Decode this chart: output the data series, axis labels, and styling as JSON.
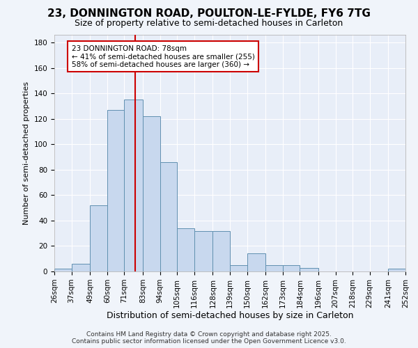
{
  "title_line1": "23, DONNINGTON ROAD, POULTON-LE-FYLDE, FY6 7TG",
  "title_line2": "Size of property relative to semi-detached houses in Carleton",
  "xlabel": "Distribution of semi-detached houses by size in Carleton",
  "ylabel": "Number of semi-detached properties",
  "bin_labels": [
    "26sqm",
    "37sqm",
    "49sqm",
    "60sqm",
    "71sqm",
    "83sqm",
    "94sqm",
    "105sqm",
    "116sqm",
    "128sqm",
    "139sqm",
    "150sqm",
    "162sqm",
    "173sqm",
    "184sqm",
    "196sqm",
    "207sqm",
    "218sqm",
    "229sqm",
    "241sqm",
    "252sqm"
  ],
  "bin_edges": [
    26,
    37,
    49,
    60,
    71,
    83,
    94,
    105,
    116,
    128,
    139,
    150,
    162,
    173,
    184,
    196,
    207,
    218,
    229,
    241,
    252
  ],
  "bar_heights": [
    2,
    6,
    52,
    127,
    135,
    122,
    86,
    34,
    32,
    32,
    5,
    14,
    5,
    5,
    3,
    0,
    0,
    0,
    0,
    2
  ],
  "bar_color": "#c8d8ee",
  "bar_edge_color": "#6090b0",
  "property_size": 78,
  "vline_color": "#cc0000",
  "annotation_text": "23 DONNINGTON ROAD: 78sqm\n← 41% of semi-detached houses are smaller (255)\n58% of semi-detached houses are larger (360) →",
  "annotation_box_color": "#ffffff",
  "annotation_box_edge_color": "#cc0000",
  "footer_line1": "Contains HM Land Registry data © Crown copyright and database right 2025.",
  "footer_line2": "Contains public sector information licensed under the Open Government Licence v3.0.",
  "ylim": [
    0,
    186
  ],
  "yticks": [
    0,
    20,
    40,
    60,
    80,
    100,
    120,
    140,
    160,
    180
  ],
  "background_color": "#f0f4fa",
  "plot_background_color": "#e8eef8",
  "grid_color": "#ffffff",
  "title1_fontsize": 11,
  "title2_fontsize": 9,
  "ylabel_fontsize": 8,
  "xlabel_fontsize": 9,
  "tick_fontsize": 7.5,
  "footer_fontsize": 6.5
}
